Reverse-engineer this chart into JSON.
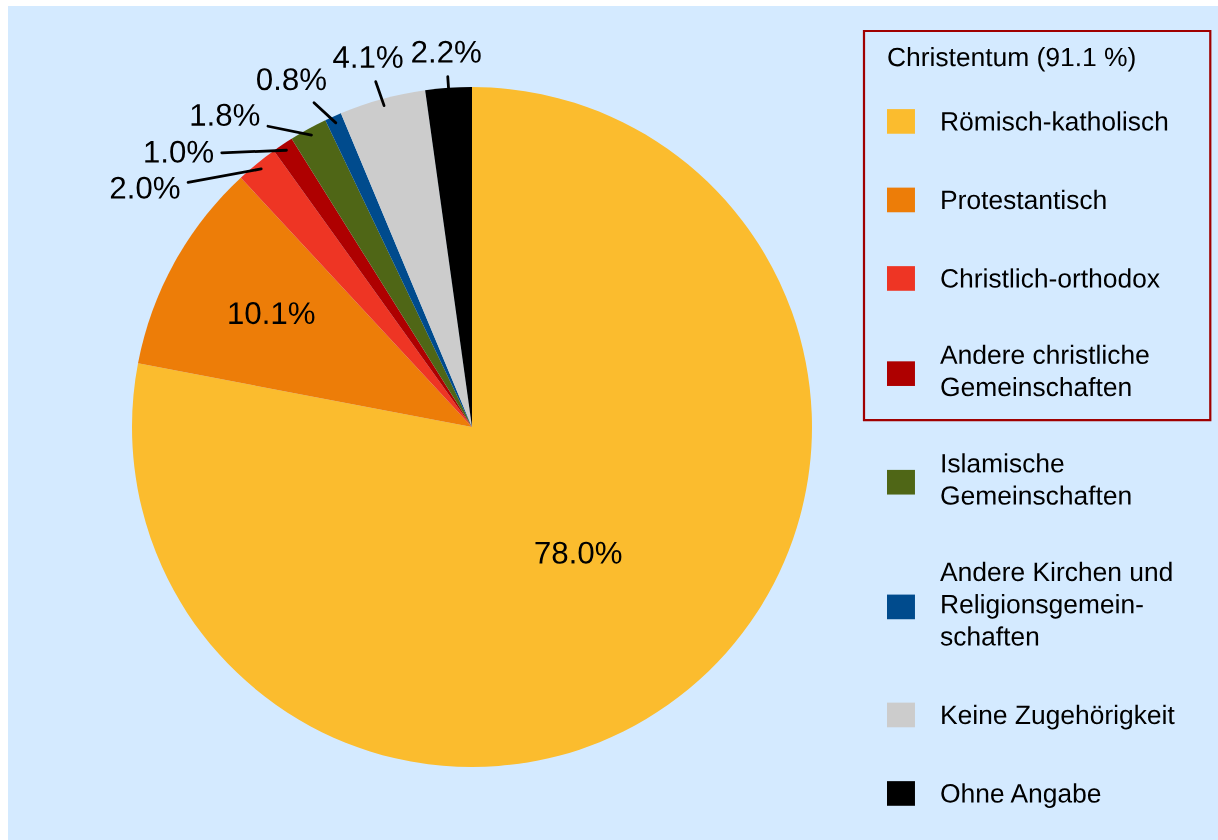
{
  "chart_data": {
    "type": "pie",
    "categories": [
      "Römisch-katholisch",
      "Protestantisch",
      "Christlich-orthodox",
      "Andere christliche\nGemeinschaften",
      "Islamische\nGemeinschaften",
      "Andere Kirchen und\nReligionsgemein-\nschaften",
      "Keine Zugehörigkeit",
      "Ohne Angabe"
    ],
    "values": [
      78.0,
      10.1,
      2.0,
      1.0,
      1.8,
      0.8,
      4.1,
      2.2
    ],
    "colors": [
      "#fbbc2e",
      "#ed7d08",
      "#ee3524",
      "#ae0000",
      "#4f6616",
      "#004b8d",
      "#cccccc",
      "#000000"
    ],
    "value_labels": [
      "78.0%",
      "10.1%",
      "2.0%",
      "1.0%",
      "1.8%",
      "0.8%",
      "4.1%",
      "2.2%"
    ],
    "legend_title": "Christentum (91.1 %)",
    "legend": "right"
  }
}
